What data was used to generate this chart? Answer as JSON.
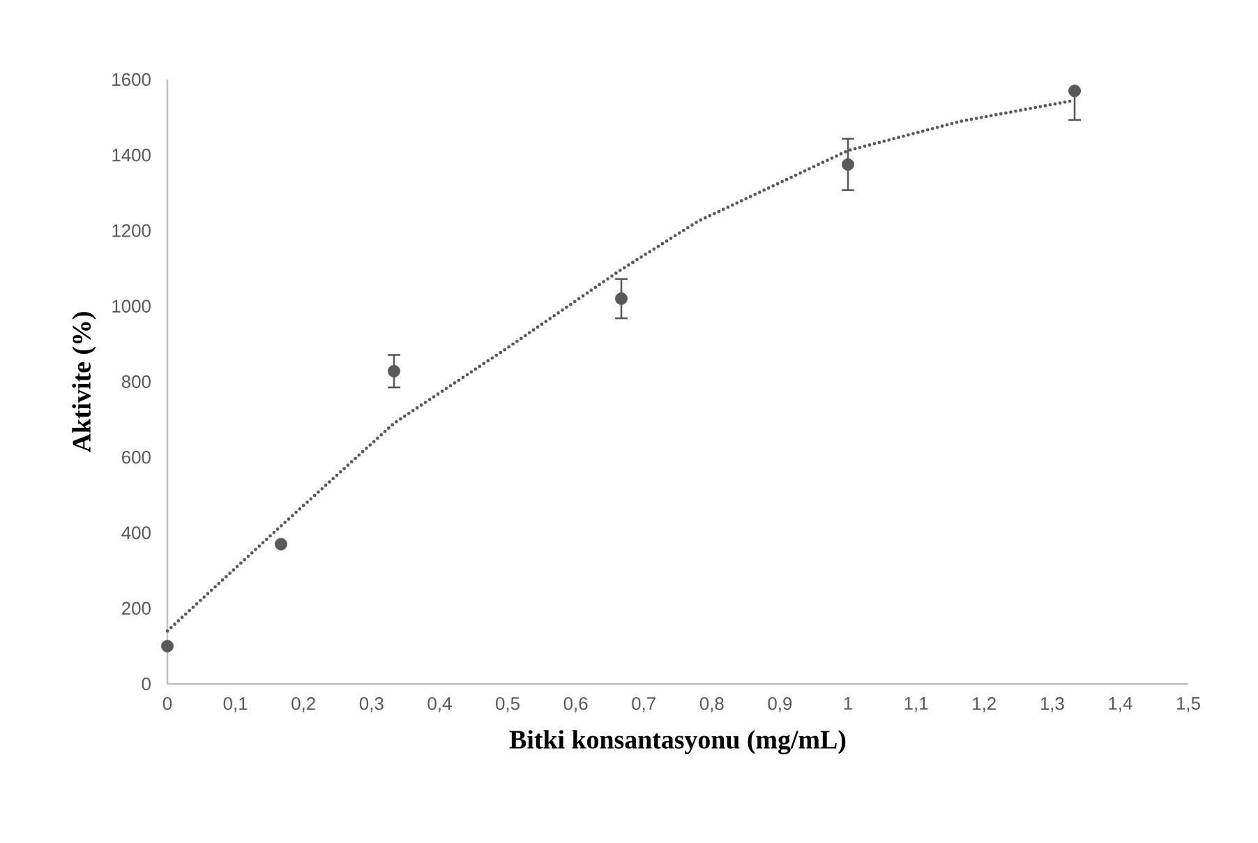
{
  "chart_data": {
    "type": "scatter",
    "xlabel": "Bitki konsantasyonu (mg/mL)",
    "ylabel": "Aktivite (%)",
    "xlim": [
      0,
      1.5
    ],
    "ylim": [
      0,
      1600
    ],
    "xticks": [
      0,
      {
        "value": 0.1,
        "label": "0,1"
      },
      {
        "value": 0.2,
        "label": "0,2"
      },
      {
        "value": 0.3,
        "label": "0,3"
      },
      {
        "value": 0.4,
        "label": "0,4"
      },
      {
        "value": 0.5,
        "label": "0,5"
      },
      {
        "value": 0.6,
        "label": "0,6"
      },
      {
        "value": 0.7,
        "label": "0,7"
      },
      {
        "value": 0.8,
        "label": "0,8"
      },
      {
        "value": 0.9,
        "label": "0,9"
      },
      1,
      {
        "value": 1.1,
        "label": "1,1"
      },
      {
        "value": 1.2,
        "label": "1,2"
      },
      {
        "value": 1.3,
        "label": "1,3"
      },
      {
        "value": 1.4,
        "label": "1,4"
      },
      {
        "value": 1.5,
        "label": "1,5"
      }
    ],
    "yticks": [
      0,
      200,
      400,
      600,
      800,
      1000,
      1200,
      1400,
      1600
    ],
    "series": [
      {
        "color": "#595959",
        "marker": "circle",
        "x": [
          0,
          0.167,
          0.333,
          0.667,
          1.0,
          1.333
        ],
        "values": [
          100,
          370,
          828,
          1020,
          1375,
          1570
        ],
        "errors": [
          null,
          null,
          43,
          52,
          68,
          [
            1493,
            1570
          ]
        ]
      },
      {
        "type": "line",
        "color": "#595959",
        "marker": "none",
        "line_style": "dotted",
        "x": [
          0,
          0.167,
          0.333,
          0.5,
          0.667,
          0.78,
          1.0,
          1.167,
          1.333
        ],
        "values": [
          140,
          418,
          690,
          890,
          1097,
          1225,
          1412,
          1490,
          1545
        ]
      }
    ]
  }
}
